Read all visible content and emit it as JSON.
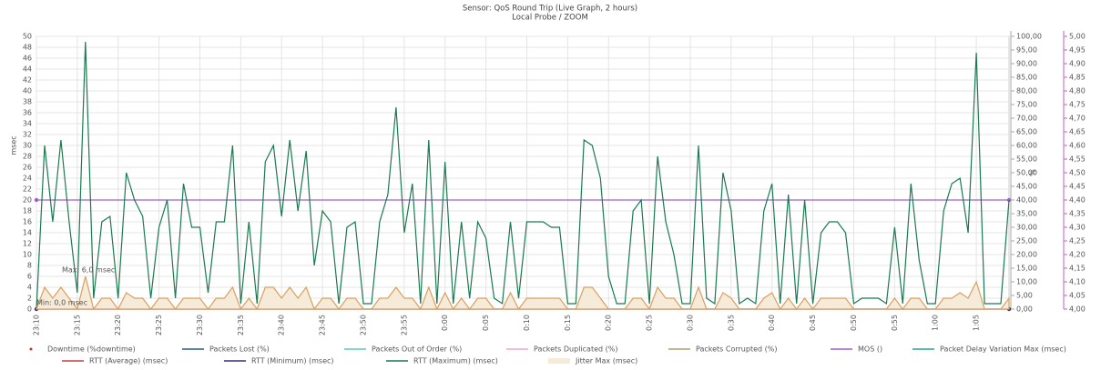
{
  "chart_data": {
    "type": "line",
    "title": "Sensor: QoS Round Trip (Live Graph, 2 hours)",
    "subtitle": "Local Probe / ZOOM",
    "y_label": "msec",
    "y2_label": "%",
    "annotations": [
      "Max: 6,0 msec",
      "Min: 0,0 msec"
    ],
    "x": [
      0,
      1,
      2,
      3,
      4,
      5,
      6,
      7,
      8,
      9,
      10,
      11,
      12,
      13,
      14,
      15,
      16,
      17,
      18,
      19,
      20,
      21,
      22,
      23,
      24,
      25,
      26,
      27,
      28,
      29,
      30,
      31,
      32,
      33,
      34,
      35,
      36,
      37,
      38,
      39,
      40,
      41,
      42,
      43,
      44,
      45,
      46,
      47,
      48,
      49,
      50,
      51,
      52,
      53,
      54,
      55,
      56,
      57,
      58,
      59,
      60,
      61,
      62,
      63,
      64,
      65,
      66,
      67,
      68,
      69,
      70,
      71,
      72,
      73,
      74,
      75,
      76,
      77,
      78,
      79,
      80,
      81,
      82,
      83,
      84,
      85,
      86,
      87,
      88,
      89,
      90,
      91,
      92,
      93,
      94,
      95,
      96,
      97,
      98,
      99,
      100,
      101,
      102,
      103,
      104,
      105,
      106,
      107,
      108,
      109,
      110,
      111,
      112,
      113,
      114,
      115,
      116,
      117,
      118,
      119
    ],
    "xlim": [
      0,
      119
    ],
    "xticks": [
      {
        "value": 0,
        "label": "23:10"
      },
      {
        "value": 5,
        "label": "23:15"
      },
      {
        "value": 10,
        "label": "23:20"
      },
      {
        "value": 15,
        "label": "23:25"
      },
      {
        "value": 20,
        "label": "23:30"
      },
      {
        "value": 25,
        "label": "23:35"
      },
      {
        "value": 30,
        "label": "23:40"
      },
      {
        "value": 35,
        "label": "23:45"
      },
      {
        "value": 40,
        "label": "23:50"
      },
      {
        "value": 45,
        "label": "23:55"
      },
      {
        "value": 50,
        "label": "0:00"
      },
      {
        "value": 55,
        "label": "0:05"
      },
      {
        "value": 60,
        "label": "0:10"
      },
      {
        "value": 65,
        "label": "0:15"
      },
      {
        "value": 70,
        "label": "0:20"
      },
      {
        "value": 75,
        "label": "0:25"
      },
      {
        "value": 80,
        "label": "0:30"
      },
      {
        "value": 85,
        "label": "0:35"
      },
      {
        "value": 90,
        "label": "0:40"
      },
      {
        "value": 95,
        "label": "0:45"
      },
      {
        "value": 100,
        "label": "0:50"
      },
      {
        "value": 105,
        "label": "0:55"
      },
      {
        "value": 110,
        "label": "1:00"
      },
      {
        "value": 115,
        "label": "1:05"
      }
    ],
    "ylim": [
      0,
      50
    ],
    "yticks": [
      0,
      2,
      4,
      6,
      8,
      10,
      12,
      14,
      16,
      18,
      20,
      22,
      24,
      26,
      28,
      30,
      32,
      34,
      36,
      38,
      40,
      42,
      44,
      46,
      48,
      50
    ],
    "y2lim": [
      0,
      100
    ],
    "y2ticks": [
      {
        "value": 0,
        "label": "0,00"
      },
      {
        "value": 5,
        "label": "5,00"
      },
      {
        "value": 10,
        "label": "10,00"
      },
      {
        "value": 15,
        "label": "15,00"
      },
      {
        "value": 20,
        "label": "20,00"
      },
      {
        "value": 25,
        "label": "25,00"
      },
      {
        "value": 30,
        "label": "30,00"
      },
      {
        "value": 35,
        "label": "35,00"
      },
      {
        "value": 40,
        "label": "40,00"
      },
      {
        "value": 45,
        "label": "45,00"
      },
      {
        "value": 50,
        "label": "50,00"
      },
      {
        "value": 55,
        "label": "55,00"
      },
      {
        "value": 60,
        "label": "60,00"
      },
      {
        "value": 65,
        "label": "65,00"
      },
      {
        "value": 70,
        "label": "70,00"
      },
      {
        "value": 75,
        "label": "75,00"
      },
      {
        "value": 80,
        "label": "80,00"
      },
      {
        "value": 85,
        "label": "85,00"
      },
      {
        "value": 90,
        "label": "90,00"
      },
      {
        "value": 95,
        "label": "95,00"
      },
      {
        "value": 100,
        "label": "100,00"
      }
    ],
    "y3lim": [
      4,
      5
    ],
    "y3ticks": [
      {
        "value": 4,
        "label": "4,00"
      },
      {
        "value": 4.05,
        "label": "4,05"
      },
      {
        "value": 4.1,
        "label": "4,10"
      },
      {
        "value": 4.15,
        "label": "4,15"
      },
      {
        "value": 4.2,
        "label": "4,20"
      },
      {
        "value": 4.25,
        "label": "4,25"
      },
      {
        "value": 4.3,
        "label": "4,30"
      },
      {
        "value": 4.35,
        "label": "4,35"
      },
      {
        "value": 4.4,
        "label": "4,40"
      },
      {
        "value": 4.45,
        "label": "4,45"
      },
      {
        "value": 4.5,
        "label": "4,50"
      },
      {
        "value": 4.55,
        "label": "4,55"
      },
      {
        "value": 4.6,
        "label": "4,60"
      },
      {
        "value": 4.65,
        "label": "4,65"
      },
      {
        "value": 4.7,
        "label": "4,70"
      },
      {
        "value": 4.75,
        "label": "4,75"
      },
      {
        "value": 4.8,
        "label": "4,80"
      },
      {
        "value": 4.85,
        "label": "4,85"
      },
      {
        "value": 4.9,
        "label": "4,90"
      },
      {
        "value": 4.95,
        "label": "4,95"
      },
      {
        "value": 5,
        "label": "5,00"
      }
    ],
    "grid": true,
    "series": [
      {
        "name": "Downtime (%downtime)",
        "color": "#c0392b"
      },
      {
        "name": "Packets Lost (%)",
        "color": "#2c5c8a"
      },
      {
        "name": "Packets Out of Order (%)",
        "color": "#5fc8b0"
      },
      {
        "name": "Packets Duplicated (%)",
        "color": "#f4a6c0"
      },
      {
        "name": "Packets Corrupted (%)",
        "color": "#a9a36a"
      },
      {
        "name": "MOS ()",
        "color": "#a060c8",
        "axis": "y3",
        "x": [
          0,
          119
        ],
        "values": [
          4.4,
          4.4
        ]
      },
      {
        "name": "Packet Delay Variation Max (msec)",
        "color": "#2aa58a"
      },
      {
        "name": "RTT (Average) (msec)",
        "color": "#c84040"
      },
      {
        "name": "RTT (Minimum) (msec)",
        "color": "#303080",
        "x": [
          0,
          119
        ],
        "values": [
          0,
          0
        ]
      },
      {
        "name": "RTT (Maximum) (msec)",
        "color": "#1a7a50",
        "values": [
          0,
          30,
          16,
          31,
          16,
          3,
          49,
          2,
          16,
          17,
          2,
          25,
          20,
          17,
          2,
          15,
          20,
          2,
          23,
          15,
          15,
          3,
          16,
          16,
          30,
          1,
          16,
          1,
          27,
          30,
          17,
          31,
          18,
          29,
          8,
          18,
          16,
          1,
          15,
          16,
          1,
          1,
          16,
          21,
          37,
          14,
          23,
          1,
          31,
          1,
          27,
          1,
          16,
          2,
          16,
          13,
          2,
          1,
          16,
          2,
          16,
          16,
          16,
          15,
          15,
          1,
          1,
          31,
          30,
          24,
          6,
          1,
          1,
          18,
          20,
          1,
          28,
          16,
          10,
          1,
          1,
          30,
          2,
          1,
          25,
          18,
          1,
          2,
          1,
          18,
          23,
          1,
          21,
          1,
          20,
          1,
          14,
          16,
          16,
          14,
          1,
          2,
          2,
          2,
          1,
          15,
          1,
          23,
          9,
          1,
          1,
          18,
          23,
          24,
          14,
          47,
          1,
          1,
          1,
          20
        ]
      },
      {
        "name": "Jitter Max (msec)",
        "color": "#d9a060",
        "fill": "#f6ead8",
        "values": [
          0,
          4,
          2,
          4,
          2,
          0,
          6,
          0,
          2,
          2,
          0,
          3,
          2,
          2,
          0,
          2,
          2,
          0,
          2,
          2,
          2,
          0,
          2,
          2,
          4,
          0,
          2,
          0,
          4,
          4,
          2,
          4,
          2,
          4,
          0,
          2,
          2,
          0,
          2,
          2,
          0,
          0,
          2,
          2,
          4,
          2,
          2,
          0,
          4,
          0,
          3,
          0,
          2,
          0,
          2,
          2,
          0,
          0,
          3,
          0,
          2,
          2,
          2,
          2,
          2,
          0,
          0,
          4,
          4,
          2,
          0,
          0,
          0,
          2,
          2,
          0,
          4,
          2,
          2,
          0,
          0,
          4,
          0,
          0,
          3,
          2,
          0,
          0,
          0,
          2,
          3,
          0,
          2,
          0,
          2,
          0,
          2,
          2,
          2,
          2,
          0,
          0,
          0,
          0,
          0,
          2,
          0,
          2,
          2,
          0,
          0,
          2,
          2,
          3,
          2,
          5,
          0,
          0,
          0,
          2
        ]
      }
    ]
  }
}
